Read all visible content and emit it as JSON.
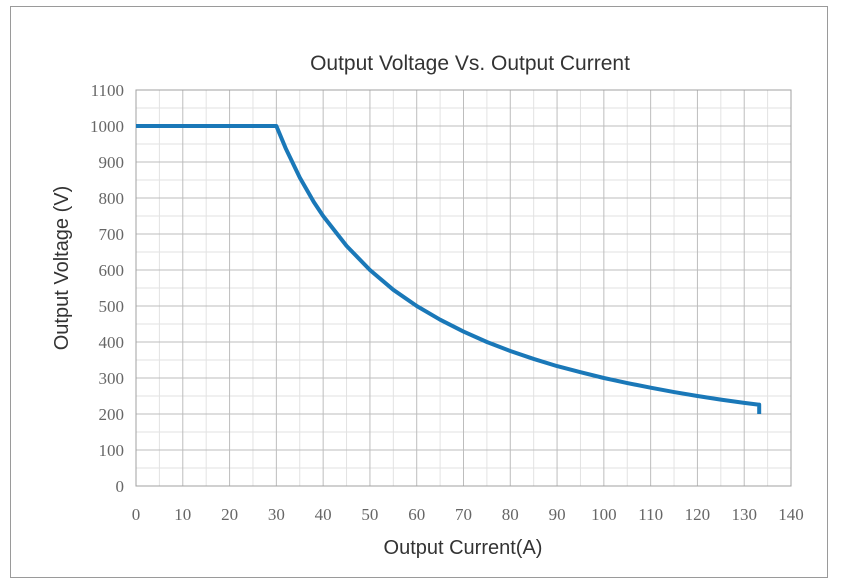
{
  "chart_data": {
    "type": "line",
    "title": "Output Voltage Vs. Output Current",
    "xlabel": "Output Current(A)",
    "ylabel": "Output Voltage (V)",
    "xlim": [
      0,
      140
    ],
    "ylim": [
      0,
      1100
    ],
    "x_ticks": [
      "0",
      "10",
      "20",
      "30",
      "40",
      "50",
      "60",
      "70",
      "80",
      "90",
      "100",
      "110",
      "120",
      "130",
      "140"
    ],
    "y_ticks": [
      "0",
      "100",
      "200",
      "300",
      "400",
      "500",
      "600",
      "700",
      "800",
      "900",
      "1000",
      "1100"
    ],
    "grid": true,
    "line_color": "#1a78b8",
    "series": [
      {
        "x": [
          0,
          30,
          32,
          35,
          38,
          40,
          45,
          50,
          55,
          60,
          65,
          70,
          75,
          80,
          85,
          90,
          95,
          100,
          105,
          110,
          115,
          120,
          125,
          130,
          133,
          133.2,
          133.2
        ],
        "values": [
          1000,
          1000,
          938,
          857,
          789,
          750,
          667,
          600,
          545,
          500,
          462,
          429,
          400,
          375,
          353,
          333,
          316,
          300,
          286,
          273,
          261,
          250,
          240,
          231,
          226,
          226,
          200
        ]
      }
    ]
  }
}
